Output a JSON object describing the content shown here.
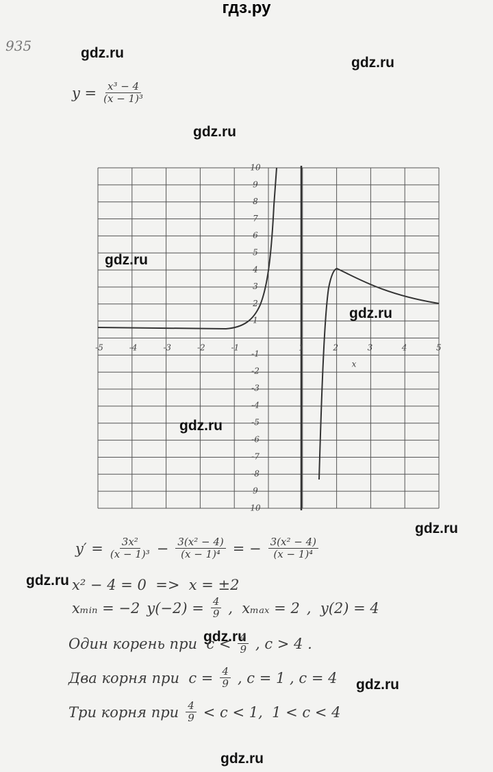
{
  "header": {
    "title": "гдз.ру"
  },
  "problem_number": "935",
  "watermarks": [
    "gdz.ru",
    "gdz.ru",
    "gdz.ru",
    "gdz.ru",
    "gdz.ru",
    "gdz.ru",
    "gdz.ru",
    "gdz.ru",
    "gdz.ru",
    "gdz.ru",
    "gdz.ru"
  ],
  "formula": [
    "y =",
    {
      "num": "x³ − 4",
      "den": "(x − 1)³"
    }
  ],
  "graph": {
    "x_labels": [
      "-5",
      "-4",
      "-3",
      "-2",
      "-1",
      "1",
      "2",
      "3",
      "4",
      "5"
    ],
    "y_labels": [
      "10",
      "9",
      "8",
      "7",
      "6",
      "5",
      "4",
      "3",
      "2",
      "1",
      "-1",
      "-2",
      "-3",
      "-4",
      "-5",
      "-6",
      "-7",
      "-8",
      "9",
      "10"
    ],
    "x_axis_label": "x"
  },
  "lines": [
    [
      "y′ =",
      {
        "num": "3x²",
        "den": "(x − 1)³"
      },
      "−",
      {
        "num": "3(x² − 4)",
        "den": "(x − 1)⁴"
      },
      "= −",
      {
        "num": "3(x² − 4)",
        "den": "(x − 1)⁴"
      }
    ],
    [
      "x² − 4 = 0  =>  x = ±2"
    ],
    [
      "xₘᵢₙ = −2",
      "y(−2) =",
      {
        "num": "4",
        "den": "9"
      },
      ",  xₘₐₓ = 2",
      ",  y(2) = 4"
    ],
    [
      "Один корень при  c <",
      {
        "num": "4",
        "den": "9"
      },
      ", c > 4 ."
    ],
    [
      "Два корня при  c =",
      {
        "num": "4",
        "den": "9"
      },
      ", c = 1 , c = 4"
    ],
    [
      "Три корня при",
      {
        "num": "4",
        "den": "9"
      },
      "< c < 1,  1 < c < 4"
    ]
  ]
}
